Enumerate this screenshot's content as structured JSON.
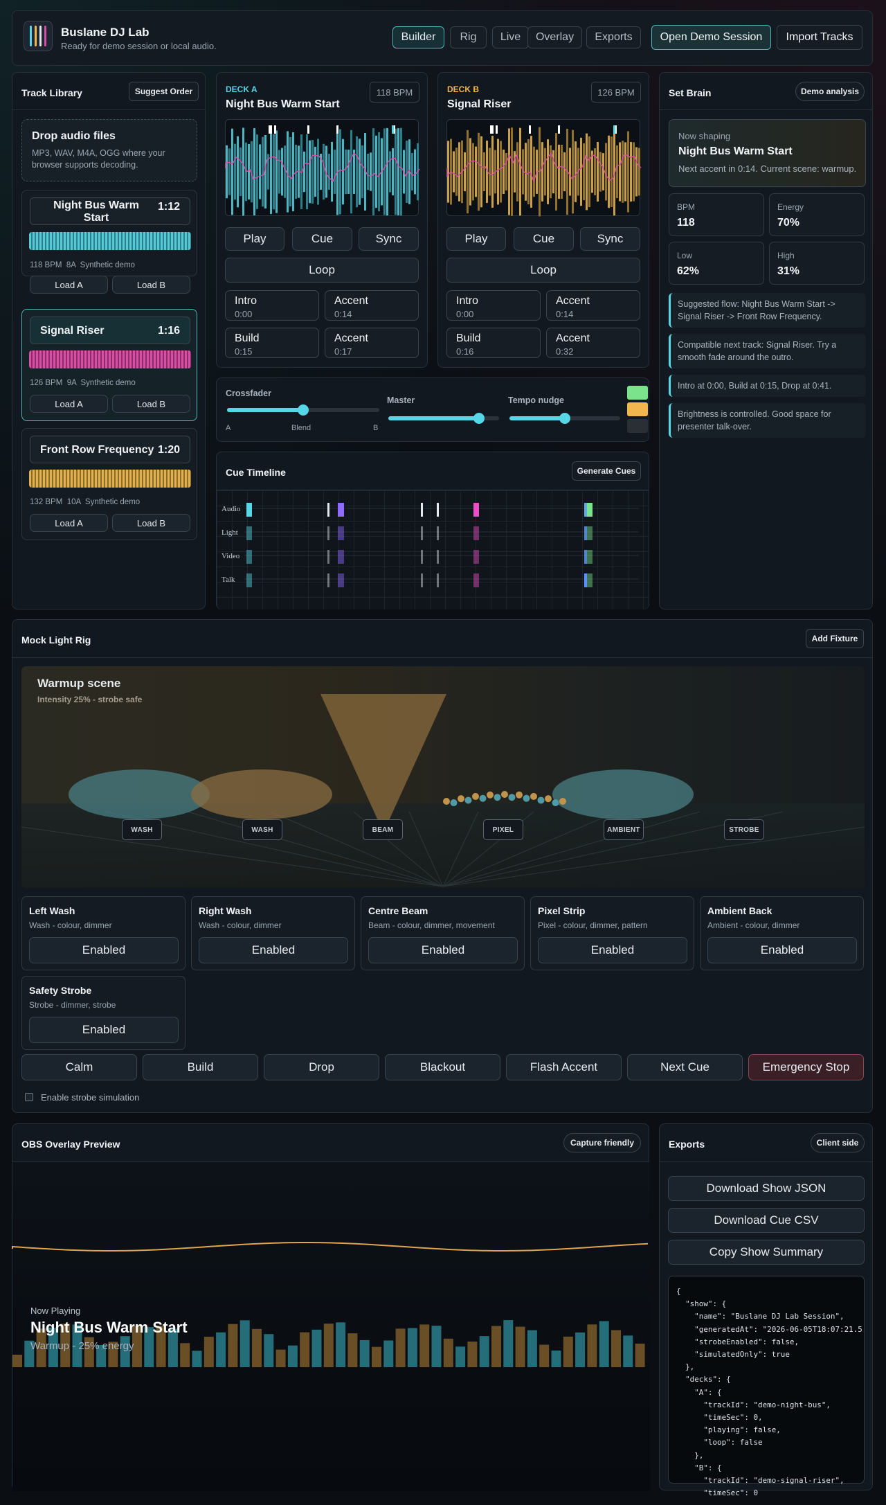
{
  "app": {
    "title": "Buslane DJ Lab",
    "subtitle": "Ready for demo session or local audio."
  },
  "nav": {
    "tabs": [
      "Builder",
      "Rig",
      "Live",
      "Overlay",
      "Exports"
    ],
    "active": "Builder",
    "open_demo": "Open Demo Session",
    "import": "Import Tracks"
  },
  "library": {
    "title": "Track Library",
    "suggest": "Suggest Order",
    "drop_title": "Drop audio files",
    "drop_desc": "MP3, WAV, M4A, OGG where your browser supports decoding.",
    "load_a": "Load A",
    "load_b": "Load B",
    "tracks": [
      {
        "name": "Night Bus Warm Start",
        "duration": "1:12",
        "meta": "118 BPM  8A  Synthetic demo",
        "color": "#56c8d6"
      },
      {
        "name": "Signal Riser",
        "duration": "1:16",
        "meta": "126 BPM  9A  Synthetic demo",
        "color": "#d84ea6"
      },
      {
        "name": "Front Row Frequency",
        "duration": "1:20",
        "meta": "132 BPM  10A  Synthetic demo",
        "color": "#e0b04e"
      }
    ]
  },
  "deckA": {
    "label": "DECK A",
    "title": "Night Bus Warm Start",
    "bpm": "118 BPM",
    "play": "Play",
    "cue": "Cue",
    "sync": "Sync",
    "loop": "Loop",
    "cues": [
      {
        "label": "Intro",
        "time": "0:00"
      },
      {
        "label": "Accent",
        "time": "0:14"
      },
      {
        "label": "Build",
        "time": "0:15"
      },
      {
        "label": "Accent",
        "time": "0:17"
      }
    ]
  },
  "deckB": {
    "label": "DECK B",
    "title": "Signal Riser",
    "bpm": "126 BPM",
    "play": "Play",
    "cue": "Cue",
    "sync": "Sync",
    "loop": "Loop",
    "cues": [
      {
        "label": "Intro",
        "time": "0:00"
      },
      {
        "label": "Accent",
        "time": "0:14"
      },
      {
        "label": "Build",
        "time": "0:16"
      },
      {
        "label": "Accent",
        "time": "0:32"
      }
    ]
  },
  "mixer": {
    "crossfader": "Crossfader",
    "a": "A",
    "blend": "Blend",
    "b": "B",
    "master": "Master",
    "tempo": "Tempo nudge",
    "crossfader_value": 0.5,
    "master_value": 0.82,
    "tempo_value": 0.5,
    "swatches": [
      "#7be38c",
      "#f2b64f",
      "#2a2f35"
    ]
  },
  "timeline": {
    "title": "Cue Timeline",
    "generate": "Generate Cues",
    "lanes": [
      "Audio",
      "Light",
      "Video",
      "Talk"
    ]
  },
  "brain": {
    "title": "Set Brain",
    "badge": "Demo analysis",
    "now_label": "Now shaping",
    "now_title": "Night Bus Warm Start",
    "now_desc": "Next accent in 0:14. Current scene: warmup.",
    "stats": [
      {
        "k": "BPM",
        "v": "118"
      },
      {
        "k": "Energy",
        "v": "70%"
      },
      {
        "k": "Low",
        "v": "62%"
      },
      {
        "k": "High",
        "v": "31%"
      }
    ],
    "notes": [
      "Suggested flow: Night Bus Warm Start -> Signal Riser -> Front Row Frequency.",
      "Compatible next track: Signal Riser. Try a smooth fade around the outro.",
      "Intro at 0:00, Build at 0:15, Drop at 0:41.",
      "Brightness is controlled. Good space for presenter talk-over."
    ]
  },
  "rig": {
    "title": "Mock Light Rig",
    "add": "Add Fixture",
    "scene": "Warmup scene",
    "scene_sub": "Intensity 25% - strobe safe",
    "labels": [
      "WASH",
      "WASH",
      "BEAM",
      "PIXEL",
      "AMBIENT",
      "STROBE"
    ],
    "fixtures": [
      {
        "name": "Left Wash",
        "desc": "Wash - colour, dimmer",
        "state": "Enabled"
      },
      {
        "name": "Right Wash",
        "desc": "Wash - colour, dimmer",
        "state": "Enabled"
      },
      {
        "name": "Centre Beam",
        "desc": "Beam - colour, dimmer, movement",
        "state": "Enabled"
      },
      {
        "name": "Pixel Strip",
        "desc": "Pixel - colour, dimmer, pattern",
        "state": "Enabled"
      },
      {
        "name": "Ambient Back",
        "desc": "Ambient - colour, dimmer",
        "state": "Enabled"
      },
      {
        "name": "Safety Strobe",
        "desc": "Strobe - dimmer, strobe",
        "state": "Enabled"
      }
    ],
    "scenes": [
      "Calm",
      "Build",
      "Drop",
      "Blackout",
      "Flash Accent",
      "Next Cue",
      "Emergency Stop"
    ],
    "strobe_label": "Enable strobe simulation"
  },
  "overlay": {
    "title": "OBS Overlay Preview",
    "badge": "Capture friendly",
    "now_label": "Now Playing",
    "track": "Night Bus Warm Start",
    "sub": "Warmup - 25% energy"
  },
  "exports": {
    "title": "Exports",
    "badge": "Client side",
    "json": "Download Show JSON",
    "csv": "Download Cue CSV",
    "copy": "Copy Show Summary",
    "preview": "{\n  \"show\": {\n    \"name\": \"Buslane DJ Lab Session\",\n    \"generatedAt\": \"2026-06-05T18:07:21.5\n    \"strobeEnabled\": false,\n    \"simulatedOnly\": true\n  },\n  \"decks\": {\n    \"A\": {\n      \"trackId\": \"demo-night-bus\",\n      \"timeSec\": 0,\n      \"playing\": false,\n      \"loop\": false\n    },\n    \"B\": {\n      \"trackId\": \"demo-signal-riser\",\n      \"timeSec\": 0"
  }
}
